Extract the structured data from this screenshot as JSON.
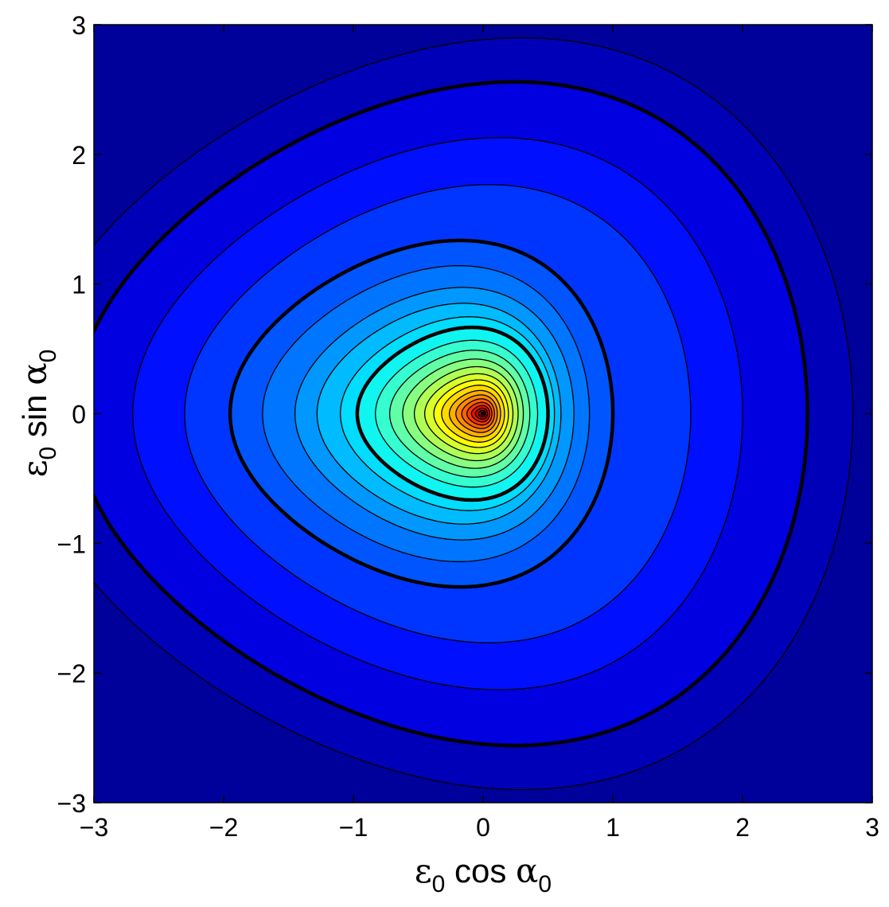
{
  "chart_data": {
    "type": "contour",
    "xlabel": "ε0 cos α0",
    "ylabel": "ε0 sin α0",
    "xlabel_parts": {
      "eps": "ε",
      "sub0": "0",
      "fn": " cos ",
      "alpha": "α",
      "sub1": "0"
    },
    "ylabel_parts": {
      "eps": "ε",
      "sub0": "0",
      "fn": " sin ",
      "alpha": "α",
      "sub1": "0"
    },
    "xlim": [
      -3,
      3
    ],
    "ylim": [
      -3,
      3
    ],
    "xticks": [
      -3,
      -2,
      -1,
      0,
      1,
      2,
      3
    ],
    "yticks": [
      -3,
      -2,
      -1,
      0,
      1,
      2,
      3
    ],
    "xtick_labels": [
      "−3",
      "−2",
      "−1",
      "0",
      "1",
      "2",
      "3"
    ],
    "ytick_labels": [
      "−3",
      "−2",
      "−1",
      "0",
      "1",
      "2",
      "3"
    ],
    "peak": [
      0,
      0
    ],
    "colormap": "jet",
    "outside_color": "#00009a",
    "contour_levels": [
      {
        "left": -3.55,
        "right": 2.85,
        "color": "#0000b8",
        "bold": false
      },
      {
        "left": -3.15,
        "right": 2.5,
        "color": "#0000e0",
        "bold": true
      },
      {
        "left": -2.7,
        "right": 2.0,
        "color": "#0010ff",
        "bold": false
      },
      {
        "left": -2.3,
        "right": 1.6,
        "color": "#0035ff",
        "bold": false
      },
      {
        "left": -1.95,
        "right": 1.0,
        "color": "#0055ff",
        "bold": true
      },
      {
        "left": -1.7,
        "right": 0.82,
        "color": "#0075ff",
        "bold": false
      },
      {
        "left": -1.45,
        "right": 0.7,
        "color": "#0098ff",
        "bold": false
      },
      {
        "left": -1.28,
        "right": 0.6,
        "color": "#00bbff",
        "bold": false
      },
      {
        "left": -1.1,
        "right": 0.55,
        "color": "#00ddff",
        "bold": false
      },
      {
        "left": -0.97,
        "right": 0.5,
        "color": "#10f5f0",
        "bold": true
      },
      {
        "left": -0.83,
        "right": 0.42,
        "color": "#35ffd0",
        "bold": false
      },
      {
        "left": -0.72,
        "right": 0.36,
        "color": "#60ffa8",
        "bold": false
      },
      {
        "left": -0.62,
        "right": 0.31,
        "color": "#88ff80",
        "bold": false
      },
      {
        "left": -0.53,
        "right": 0.27,
        "color": "#b0ff55",
        "bold": false
      },
      {
        "left": -0.45,
        "right": 0.23,
        "color": "#d8ff2a",
        "bold": false
      },
      {
        "left": -0.38,
        "right": 0.195,
        "color": "#ffff00",
        "bold": false
      },
      {
        "left": -0.32,
        "right": 0.165,
        "color": "#ffd800",
        "bold": false
      },
      {
        "left": -0.26,
        "right": 0.135,
        "color": "#ffb000",
        "bold": false
      },
      {
        "left": -0.21,
        "right": 0.11,
        "color": "#ff8a00",
        "bold": false
      },
      {
        "left": -0.165,
        "right": 0.088,
        "color": "#ff6200",
        "bold": false
      },
      {
        "left": -0.125,
        "right": 0.068,
        "color": "#ff3a00",
        "bold": false
      },
      {
        "left": -0.09,
        "right": 0.05,
        "color": "#f01000",
        "bold": false
      },
      {
        "left": -0.06,
        "right": 0.034,
        "color": "#d00000",
        "bold": false
      },
      {
        "left": -0.035,
        "right": 0.02,
        "color": "#b00000",
        "bold": false
      },
      {
        "left": -0.015,
        "right": 0.009,
        "color": "#900000",
        "bold": false
      }
    ]
  }
}
